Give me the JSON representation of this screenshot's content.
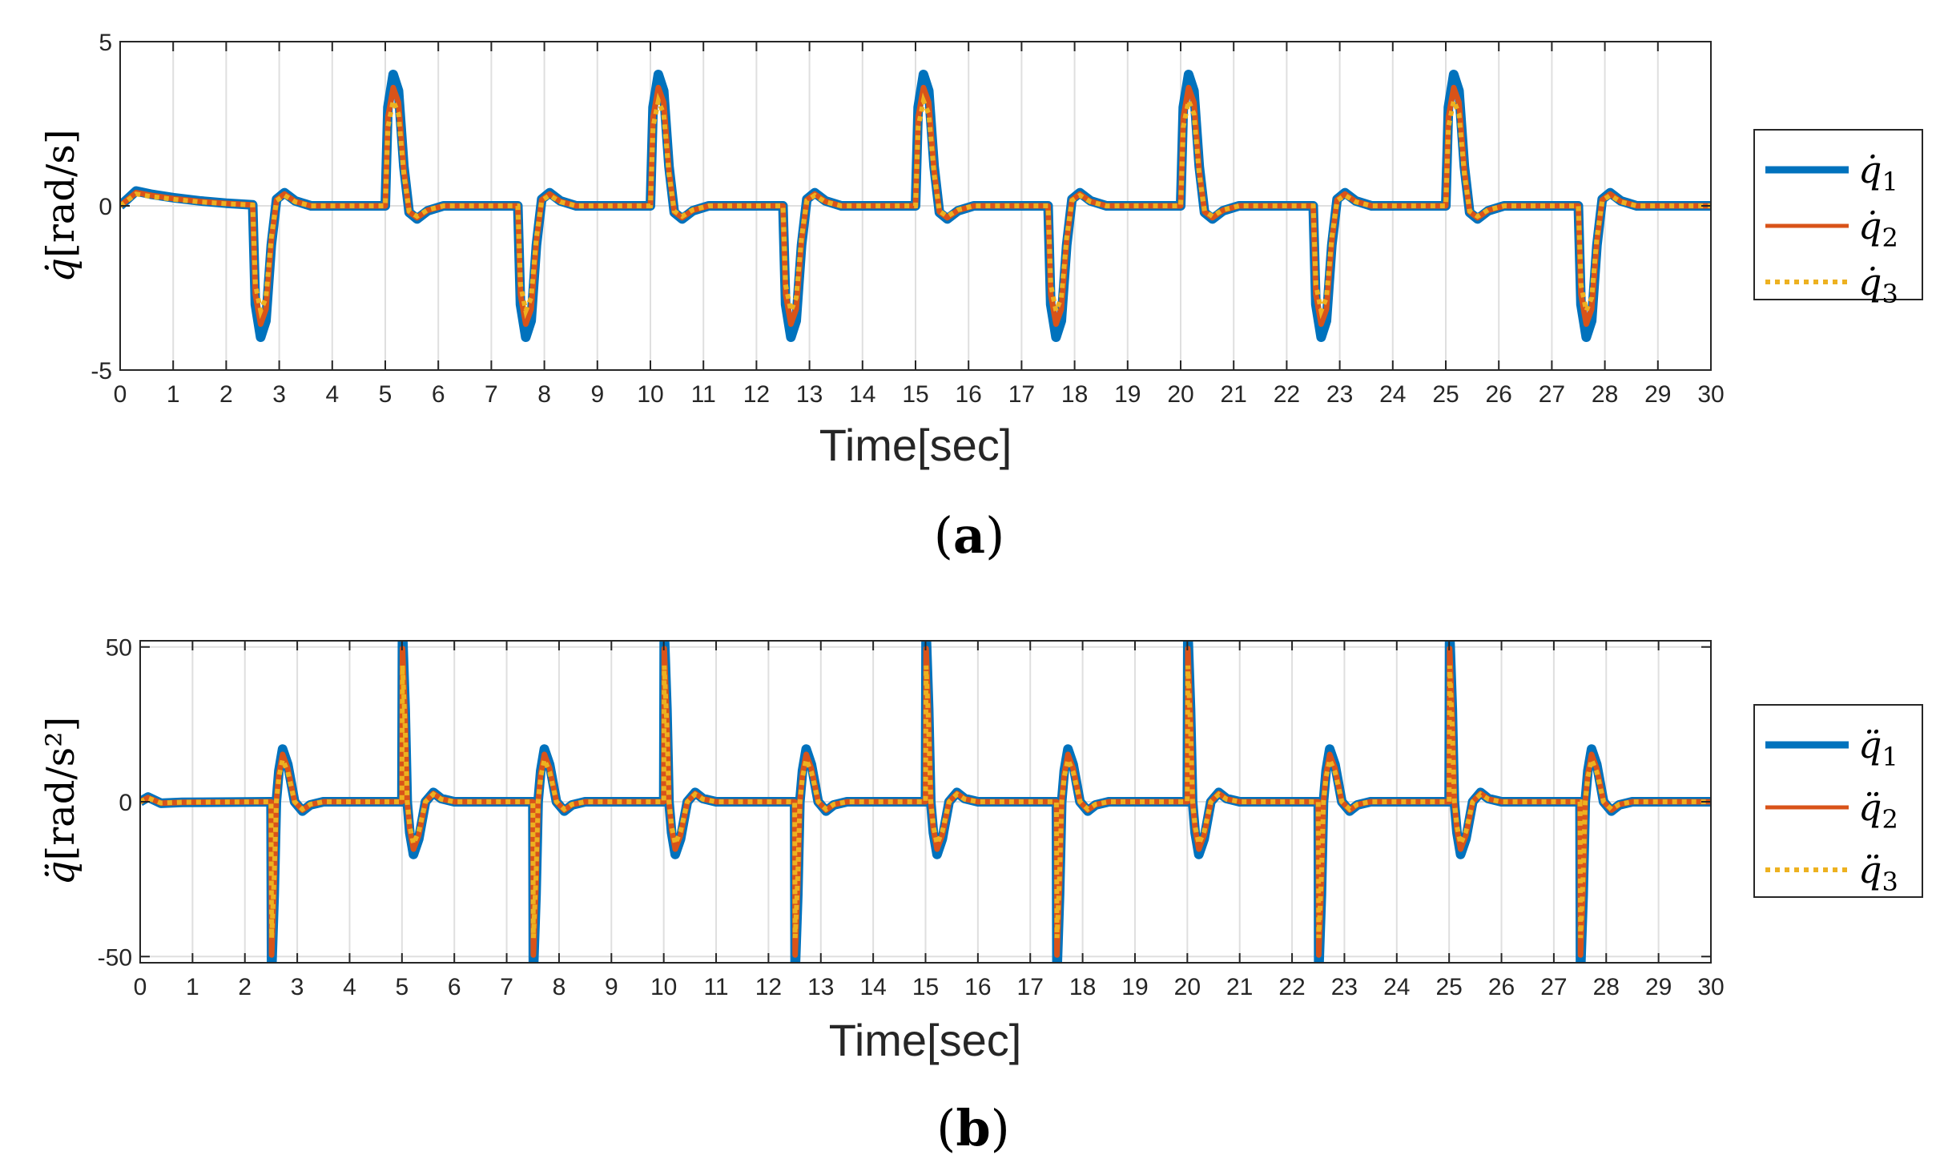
{
  "colors": {
    "q1": "#0072BD",
    "q2": "#D95319",
    "q3": "#EDB120",
    "grid": "#dfdfdf",
    "axis": "#262626"
  },
  "chart_data": [
    {
      "type": "line",
      "panel": "a",
      "caption_letter": "a",
      "caption_open": "(",
      "caption_close": ")",
      "xlabel": "Time[sec]",
      "ylabel_symbol": "q̇",
      "ylabel_unit": "[rad/s]",
      "xlim": [
        0,
        30
      ],
      "ylim": [
        -5,
        5
      ],
      "xticks": [
        0,
        1,
        2,
        3,
        4,
        5,
        6,
        7,
        8,
        9,
        10,
        11,
        12,
        13,
        14,
        15,
        16,
        17,
        18,
        19,
        20,
        21,
        22,
        23,
        24,
        25,
        26,
        27,
        28,
        29,
        30
      ],
      "xtick_labels": [
        "0",
        "1",
        "2",
        "3",
        "4",
        "5",
        "6",
        "7",
        "8",
        "9",
        "10",
        "11",
        "12",
        "13",
        "14",
        "15",
        "16",
        "17",
        "18",
        "19",
        "20",
        "21",
        "22",
        "23",
        "24",
        "25",
        "26",
        "27",
        "28",
        "29",
        "30"
      ],
      "yticks": [
        -5,
        0,
        5
      ],
      "ytick_labels": [
        "-5",
        "0",
        "5"
      ],
      "grid": true,
      "legend_position": "outside-right",
      "legend": [
        {
          "symbol": "q̇",
          "sub": "1",
          "style": "solid-thick",
          "color_key": "q1"
        },
        {
          "symbol": "q̇",
          "sub": "2",
          "style": "solid",
          "color_key": "q2"
        },
        {
          "symbol": "q̇",
          "sub": "3",
          "style": "dotted",
          "color_key": "q3"
        }
      ],
      "pulse_description": {
        "negative_pulse_starts": [
          2.5,
          7.5,
          12.5,
          17.5,
          22.5,
          27.5
        ],
        "positive_pulse_starts": [
          5.0,
          10.0,
          15.0,
          20.0,
          25.0
        ],
        "q1_peak": 4.0,
        "q2_peak": 3.7,
        "q3_peak": 3.2,
        "initial_bump_peak": 0.45
      },
      "series": [
        {
          "name": "q1_dot",
          "x": [
            0,
            0.3,
            0.6,
            1,
            1.5,
            2,
            2.5,
            2.55,
            2.65,
            2.75,
            2.85,
            2.95,
            3.1,
            3.3,
            3.6,
            5,
            5.05,
            5.15,
            5.25,
            5.35,
            5.45,
            5.6,
            5.8,
            6.1,
            7.5,
            7.55,
            7.65,
            7.75,
            7.85,
            7.95,
            8.1,
            8.3,
            8.6,
            10,
            10.05,
            10.15,
            10.25,
            10.35,
            10.45,
            10.6,
            10.8,
            11.1,
            12.5,
            12.55,
            12.65,
            12.75,
            12.85,
            12.95,
            13.1,
            13.3,
            13.6,
            15,
            15.05,
            15.15,
            15.25,
            15.35,
            15.45,
            15.6,
            15.8,
            16.1,
            17.5,
            17.55,
            17.65,
            17.75,
            17.85,
            17.95,
            18.1,
            18.3,
            18.6,
            20,
            20.05,
            20.15,
            20.25,
            20.35,
            20.45,
            20.6,
            20.8,
            21.1,
            22.5,
            22.55,
            22.65,
            22.75,
            22.85,
            22.95,
            23.1,
            23.3,
            23.6,
            25,
            25.05,
            25.15,
            25.25,
            25.35,
            25.45,
            25.6,
            25.8,
            26.1,
            27.5,
            27.55,
            27.65,
            27.75,
            27.85,
            27.95,
            28.1,
            28.3,
            28.6,
            30
          ],
          "y": [
            0,
            0.45,
            0.35,
            0.25,
            0.15,
            0.08,
            0.03,
            -3.0,
            -4.0,
            -3.5,
            -1.2,
            0.2,
            0.4,
            0.15,
            0.0,
            0.0,
            3.0,
            4.0,
            3.5,
            1.2,
            -0.2,
            -0.4,
            -0.15,
            0.0,
            0.0,
            -3.0,
            -4.0,
            -3.5,
            -1.2,
            0.2,
            0.4,
            0.15,
            0.0,
            0.0,
            3.0,
            4.0,
            3.5,
            1.2,
            -0.2,
            -0.4,
            -0.15,
            0.0,
            0.0,
            -3.0,
            -4.0,
            -3.5,
            -1.2,
            0.2,
            0.4,
            0.15,
            0.0,
            0.0,
            3.0,
            4.0,
            3.5,
            1.2,
            -0.2,
            -0.4,
            -0.15,
            0.0,
            0.0,
            -3.0,
            -4.0,
            -3.5,
            -1.2,
            0.2,
            0.4,
            0.15,
            0.0,
            0.0,
            3.0,
            4.0,
            3.5,
            1.2,
            -0.2,
            -0.4,
            -0.15,
            0.0,
            0.0,
            -3.0,
            -4.0,
            -3.5,
            -1.2,
            0.2,
            0.4,
            0.15,
            0.0,
            0.0,
            3.0,
            4.0,
            3.5,
            1.2,
            -0.2,
            -0.4,
            -0.15,
            0.0,
            0.0,
            -3.0,
            -4.0,
            -3.5,
            -1.2,
            0.2,
            0.4,
            0.15,
            0.0,
            0.0
          ]
        }
      ]
    },
    {
      "type": "line",
      "panel": "b",
      "caption_letter": "b",
      "caption_open": "(",
      "caption_close": ")",
      "xlabel": "Time[sec]",
      "ylabel_symbol": "q̈",
      "ylabel_unit": "[rad/s²]",
      "xlim": [
        0,
        30
      ],
      "ylim": [
        -52,
        52
      ],
      "xticks": [
        0,
        1,
        2,
        3,
        4,
        5,
        6,
        7,
        8,
        9,
        10,
        11,
        12,
        13,
        14,
        15,
        16,
        17,
        18,
        19,
        20,
        21,
        22,
        23,
        24,
        25,
        26,
        27,
        28,
        29,
        30
      ],
      "xtick_labels": [
        "0",
        "1",
        "2",
        "3",
        "4",
        "5",
        "6",
        "7",
        "8",
        "9",
        "10",
        "11",
        "12",
        "13",
        "14",
        "15",
        "16",
        "17",
        "18",
        "19",
        "20",
        "21",
        "22",
        "23",
        "24",
        "25",
        "26",
        "27",
        "28",
        "29",
        "30"
      ],
      "yticks": [
        -50,
        0,
        50
      ],
      "ytick_labels": [
        "-50",
        "0",
        "50"
      ],
      "grid": true,
      "legend_position": "outside-right",
      "legend": [
        {
          "symbol": "q̈",
          "sub": "1",
          "style": "solid-thick",
          "color_key": "q1"
        },
        {
          "symbol": "q̈",
          "sub": "2",
          "style": "solid",
          "color_key": "q2"
        },
        {
          "symbol": "q̈",
          "sub": "3",
          "style": "dotted",
          "color_key": "q3"
        }
      ],
      "pulse_description": {
        "negative_spikes": [
          2.5,
          7.5,
          12.5,
          17.5,
          22.5,
          27.5
        ],
        "positive_spikes": [
          5.0,
          10.0,
          15.0,
          20.0,
          25.0
        ],
        "spike_magnitude_q1": 55,
        "spike_magnitude_q3": 43,
        "bump_magnitude": 17
      },
      "series": [
        {
          "name": "q1_ddot",
          "x": [
            0,
            0.15,
            0.4,
            0.8,
            2.5,
            2.51,
            2.56,
            2.6,
            2.65,
            2.72,
            2.82,
            2.95,
            3.1,
            3.25,
            3.5,
            5,
            5.01,
            5.06,
            5.1,
            5.15,
            5.22,
            5.32,
            5.45,
            5.6,
            5.75,
            6.0,
            7.5,
            7.51,
            7.56,
            7.6,
            7.65,
            7.72,
            7.82,
            7.95,
            8.1,
            8.25,
            8.5,
            10,
            10.01,
            10.06,
            10.1,
            10.15,
            10.22,
            10.32,
            10.45,
            10.6,
            10.75,
            11.0,
            12.5,
            12.51,
            12.56,
            12.6,
            12.65,
            12.72,
            12.82,
            12.95,
            13.1,
            13.25,
            13.5,
            15,
            15.01,
            15.06,
            15.1,
            15.15,
            15.22,
            15.32,
            15.45,
            15.6,
            15.75,
            16.0,
            17.5,
            17.51,
            17.56,
            17.6,
            17.65,
            17.72,
            17.82,
            17.95,
            18.1,
            18.25,
            18.5,
            20,
            20.01,
            20.06,
            20.1,
            20.15,
            20.22,
            20.32,
            20.45,
            20.6,
            20.75,
            21.0,
            22.5,
            22.51,
            22.56,
            22.6,
            22.65,
            22.72,
            22.82,
            22.95,
            23.1,
            23.25,
            23.5,
            25,
            25.01,
            25.06,
            25.1,
            25.15,
            25.22,
            25.32,
            25.45,
            25.6,
            25.75,
            26.0,
            27.5,
            27.51,
            27.56,
            27.6,
            27.65,
            27.72,
            27.82,
            27.95,
            28.1,
            28.25,
            28.5,
            30
          ],
          "y": [
            0,
            1.5,
            -0.5,
            -0.2,
            0,
            -55,
            -30,
            0,
            10,
            17,
            12,
            0,
            -3,
            -1,
            0,
            0,
            55,
            30,
            0,
            -10,
            -17,
            -12,
            0,
            3,
            1,
            0,
            0,
            -55,
            -30,
            0,
            10,
            17,
            12,
            0,
            -3,
            -1,
            0,
            0,
            55,
            30,
            0,
            -10,
            -17,
            -12,
            0,
            3,
            1,
            0,
            0,
            -55,
            -30,
            0,
            10,
            17,
            12,
            0,
            -3,
            -1,
            0,
            0,
            55,
            30,
            0,
            -10,
            -17,
            -12,
            0,
            3,
            1,
            0,
            0,
            -55,
            -30,
            0,
            10,
            17,
            12,
            0,
            -3,
            -1,
            0,
            0,
            55,
            30,
            0,
            -10,
            -17,
            -12,
            0,
            3,
            1,
            0,
            0,
            -55,
            -30,
            0,
            10,
            17,
            12,
            0,
            -3,
            -1,
            0,
            0,
            55,
            30,
            0,
            -10,
            -17,
            -12,
            0,
            3,
            1,
            0,
            0,
            -55,
            -30,
            0,
            10,
            17,
            12,
            0,
            -3,
            -1,
            0,
            0
          ]
        }
      ]
    }
  ]
}
